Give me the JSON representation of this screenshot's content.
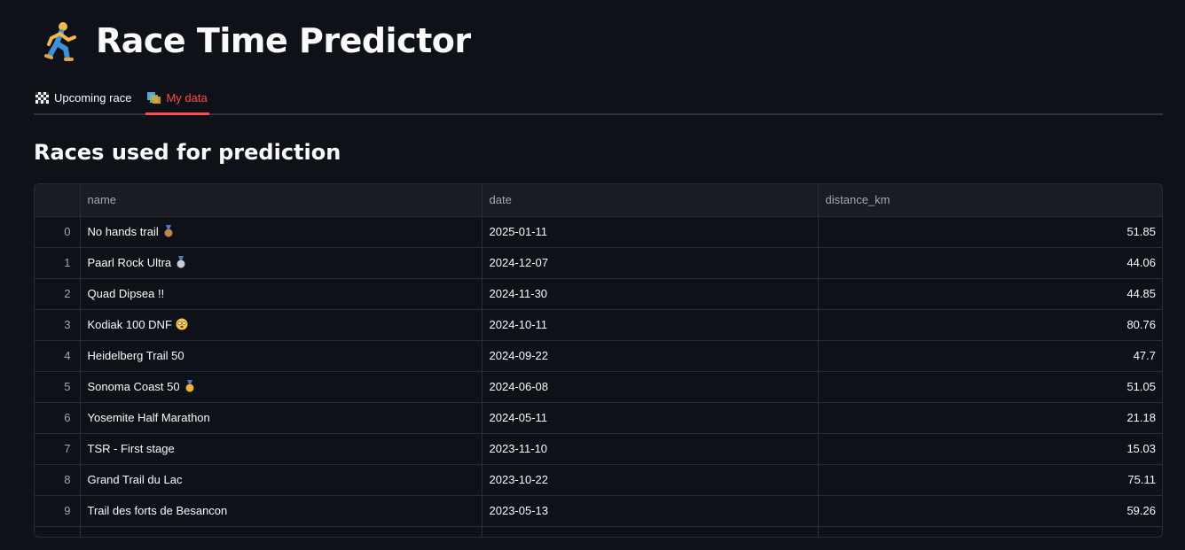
{
  "title": "Race Time Predictor",
  "title_icon": "runner-icon",
  "tabs": [
    {
      "label": "Upcoming race",
      "icon": "checkered-flag-icon",
      "active": false
    },
    {
      "label": "My data",
      "icon": "bar-chart-icon",
      "active": true
    }
  ],
  "subheader": "Races used for prediction",
  "table": {
    "columns": [
      "name",
      "date",
      "distance_km"
    ],
    "rows": [
      {
        "index": "0",
        "name": "No hands trail",
        "badge": "bronze-medal-icon",
        "date": "2025-01-11",
        "distance_km": "51.85"
      },
      {
        "index": "1",
        "name": "Paarl Rock Ultra",
        "badge": "silver-medal-icon",
        "date": "2024-12-07",
        "distance_km": "44.06"
      },
      {
        "index": "2",
        "name": "Quad Dipsea !!",
        "badge": "",
        "date": "2024-11-30",
        "distance_km": "44.85"
      },
      {
        "index": "3",
        "name": "Kodiak 100 DNF",
        "badge": "dizzy-face-icon",
        "date": "2024-10-11",
        "distance_km": "80.76"
      },
      {
        "index": "4",
        "name": "Heidelberg Trail 50",
        "badge": "",
        "date": "2024-09-22",
        "distance_km": "47.7"
      },
      {
        "index": "5",
        "name": "Sonoma Coast 50",
        "badge": "gold-medal-icon",
        "date": "2024-06-08",
        "distance_km": "51.05"
      },
      {
        "index": "6",
        "name": "Yosemite Half Marathon",
        "badge": "",
        "date": "2024-05-11",
        "distance_km": "21.18"
      },
      {
        "index": "7",
        "name": "TSR - First stage",
        "badge": "",
        "date": "2023-11-10",
        "distance_km": "15.03"
      },
      {
        "index": "8",
        "name": "Grand Trail du Lac",
        "badge": "",
        "date": "2023-10-22",
        "distance_km": "75.11"
      },
      {
        "index": "9",
        "name": "Trail des forts de Besancon",
        "badge": "",
        "date": "2023-05-13",
        "distance_km": "59.26"
      }
    ]
  },
  "colors": {
    "background": "#0e1117",
    "accent": "#ff4b4b",
    "header_bg": "#1a1c24",
    "border": "#2a2c36"
  }
}
